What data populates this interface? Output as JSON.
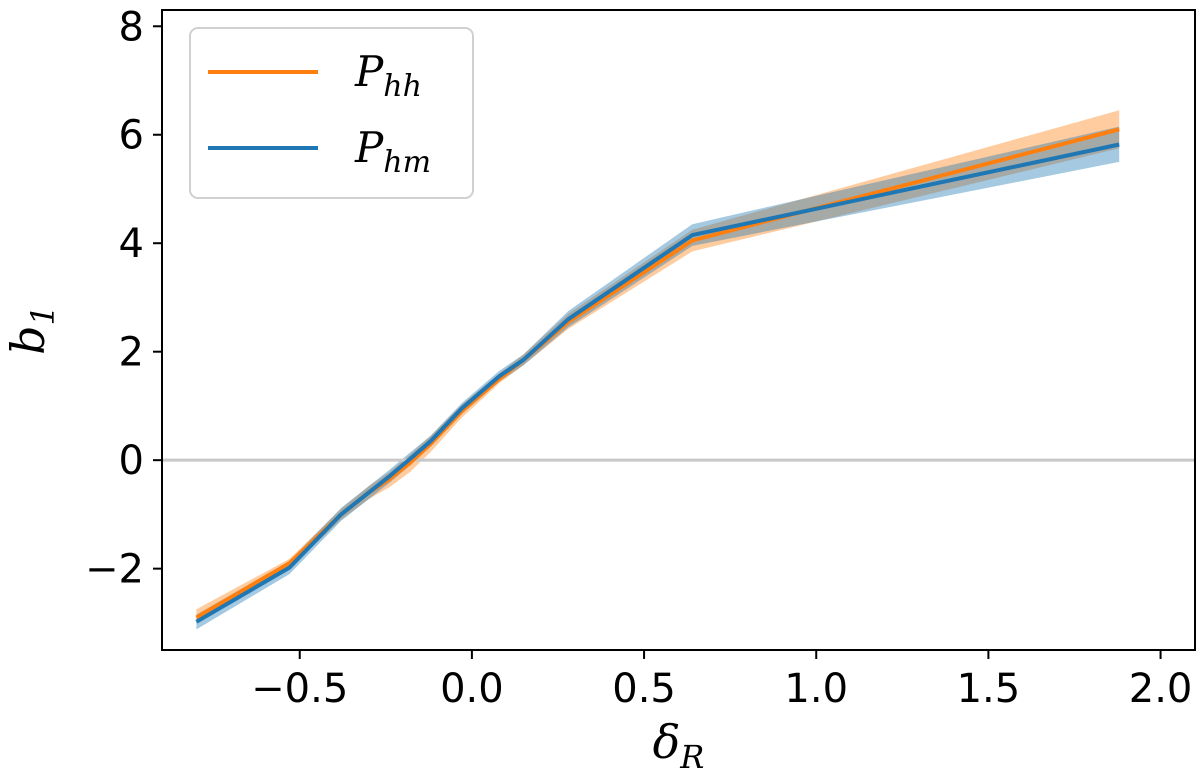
{
  "chart_data": {
    "type": "line",
    "title": "",
    "xlabel": "δ",
    "xlabel_sub": "R",
    "ylabel": "b",
    "ylabel_sub": "1",
    "xlim": [
      -0.9,
      2.1
    ],
    "ylim": [
      -3.5,
      8.3
    ],
    "xticks": [
      -0.5,
      0.0,
      0.5,
      1.0,
      1.5,
      2.0
    ],
    "xtick_labels": [
      "−0.5",
      "0.0",
      "0.5",
      "1.0",
      "1.5",
      "2.0"
    ],
    "yticks": [
      -2,
      0,
      2,
      4,
      6,
      8
    ],
    "ytick_labels": [
      "−2",
      "0",
      "2",
      "4",
      "6",
      "8"
    ],
    "hline": 0,
    "hline_color": "#c8c8c8",
    "legend_position": "upper-left",
    "series": [
      {
        "name": "P",
        "name_sub": "hh",
        "color": "#ff7f0e",
        "x": [
          -0.8,
          -0.53,
          -0.38,
          -0.3,
          -0.24,
          -0.18,
          -0.12,
          -0.03,
          0.08,
          0.15,
          0.28,
          0.64,
          1.88
        ],
        "y": [
          -2.9,
          -1.9,
          -1.0,
          -0.6,
          -0.35,
          -0.05,
          0.3,
          0.9,
          1.5,
          1.85,
          2.55,
          4.05,
          6.1
        ],
        "lower": [
          -3.0,
          -2.0,
          -1.1,
          -0.72,
          -0.5,
          -0.22,
          0.15,
          0.78,
          1.42,
          1.75,
          2.42,
          3.85,
          5.75
        ],
        "upper": [
          -2.75,
          -1.82,
          -0.9,
          -0.48,
          -0.22,
          0.1,
          0.45,
          1.02,
          1.6,
          1.95,
          2.7,
          4.25,
          6.45
        ]
      },
      {
        "name": "P",
        "name_sub": "hm",
        "color": "#1f77b4",
        "x": [
          -0.8,
          -0.53,
          -0.38,
          -0.3,
          -0.24,
          -0.18,
          -0.12,
          -0.03,
          0.08,
          0.15,
          0.28,
          0.64,
          1.88
        ],
        "y": [
          -2.98,
          -1.98,
          -1.0,
          -0.6,
          -0.3,
          0.02,
          0.35,
          0.95,
          1.55,
          1.85,
          2.6,
          4.15,
          5.82
        ],
        "lower": [
          -3.12,
          -2.1,
          -1.12,
          -0.72,
          -0.42,
          -0.1,
          0.25,
          0.85,
          1.45,
          1.75,
          2.45,
          3.95,
          5.5
        ],
        "upper": [
          -2.85,
          -1.86,
          -0.88,
          -0.48,
          -0.18,
          0.14,
          0.45,
          1.05,
          1.65,
          1.95,
          2.75,
          4.35,
          6.15
        ]
      }
    ]
  }
}
